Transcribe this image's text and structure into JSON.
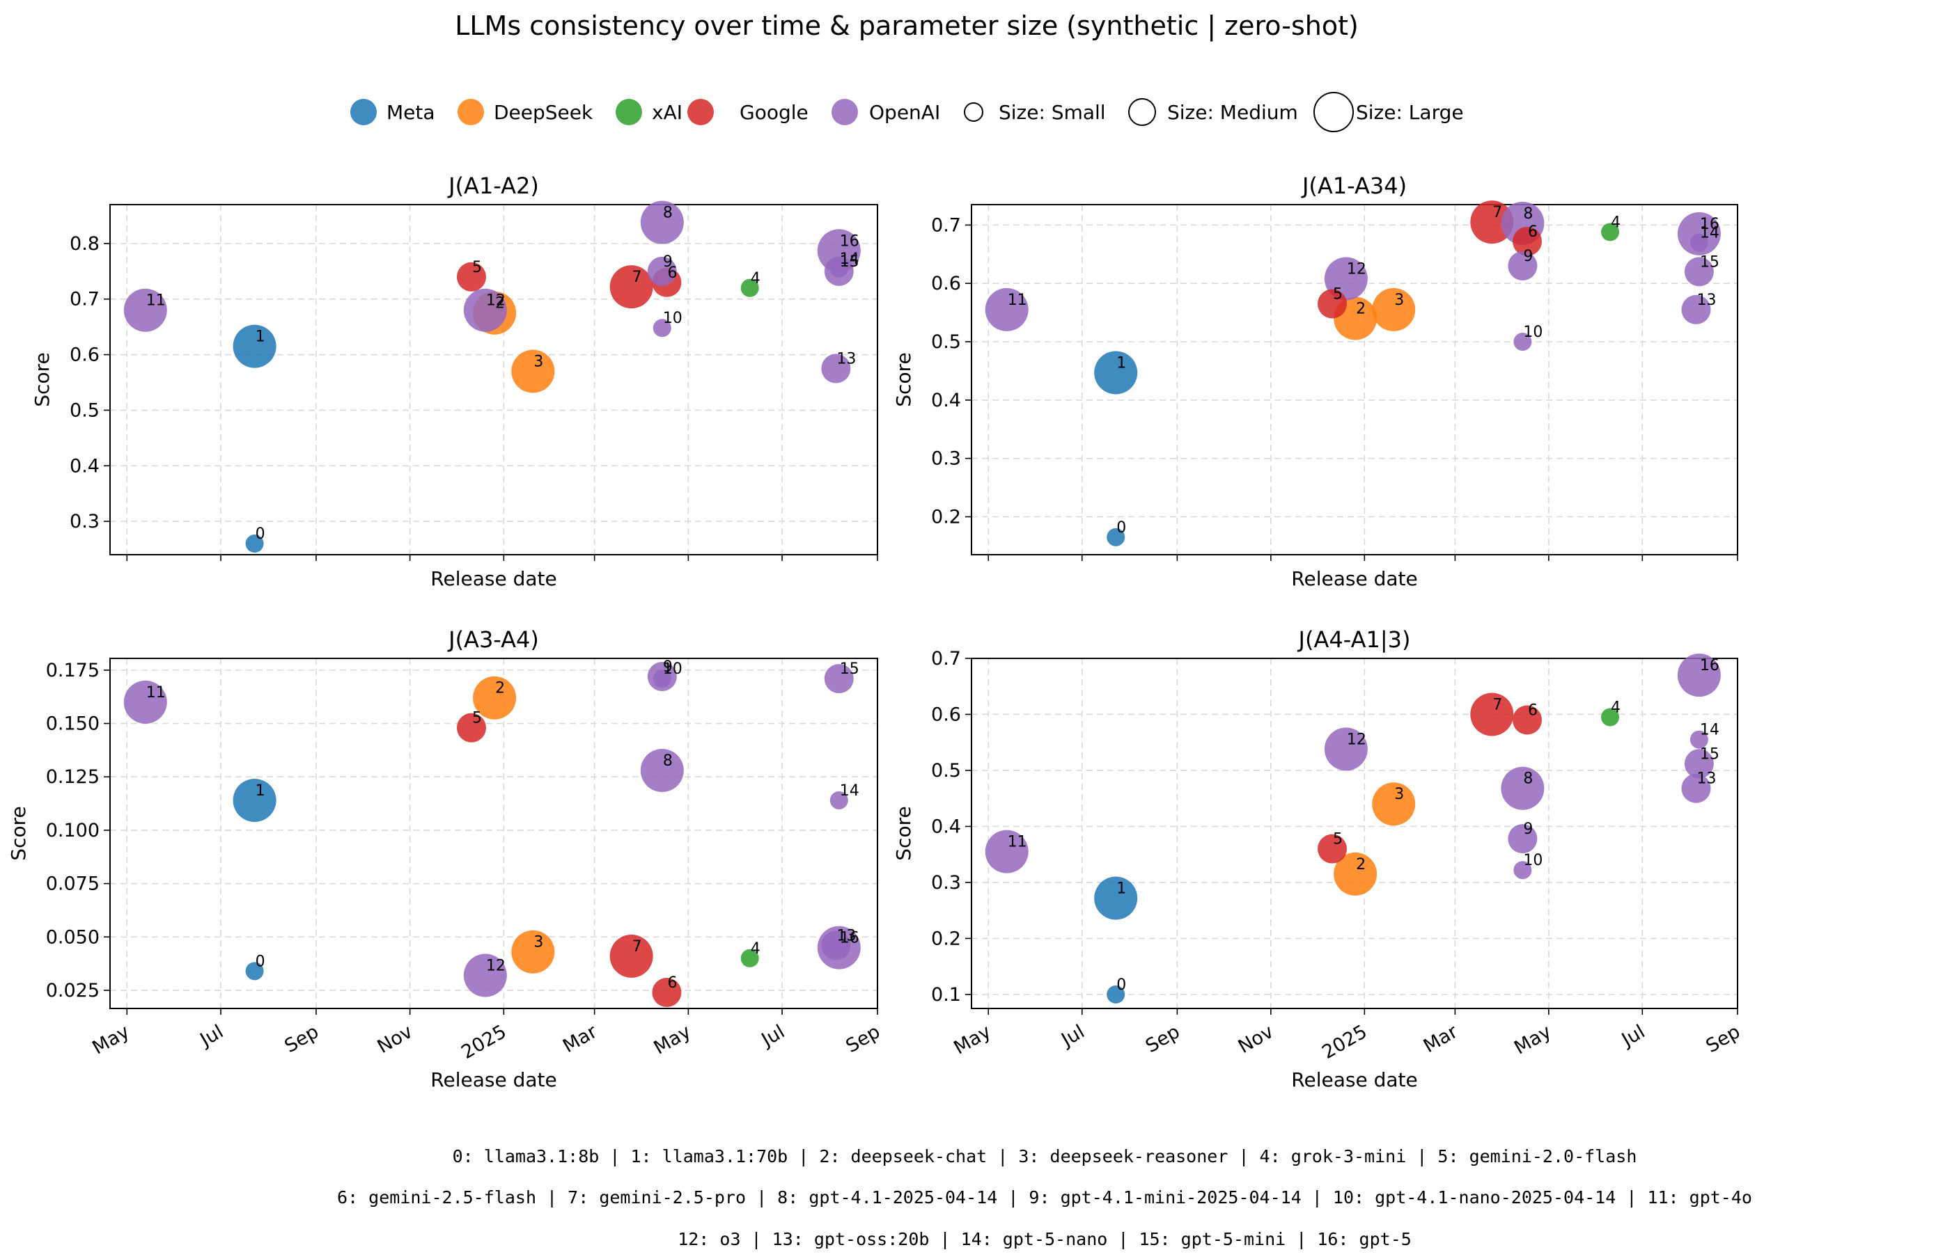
{
  "title": "LLMs consistency over time & parameter size  (synthetic | zero-shot)",
  "legend": {
    "providers": [
      {
        "name": "Meta",
        "color": "#1f77b4"
      },
      {
        "name": "DeepSeek",
        "color": "#ff7f0e"
      },
      {
        "name": "xAI",
        "color": "#2ca02c"
      },
      {
        "name": "Google",
        "color": "#d62728"
      },
      {
        "name": "OpenAI",
        "color": "#9467bd"
      }
    ],
    "sizes": [
      {
        "name": "Size: Small",
        "category": "small"
      },
      {
        "name": "Size: Medium",
        "category": "medium"
      },
      {
        "name": "Size: Large",
        "category": "large"
      }
    ]
  },
  "footer": [
    "0: llama3.1:8b |  1: llama3.1:70b |  2: deepseek-chat |  3: deepseek-reasoner |  4: grok-3-mini |  5: gemini-2.0-flash",
    "6: gemini-2.5-flash |  7: gemini-2.5-pro |  8: gpt-4.1-2025-04-14 |  9: gpt-4.1-mini-2025-04-14 | 10: gpt-4.1-nano-2025-04-14 | 11: gpt-4o",
    "12: o3 | 13: gpt-oss:20b | 14: gpt-5-nano | 15: gpt-5-mini | 16: gpt-5"
  ],
  "chart_data": [
    {
      "type": "scatter",
      "title": "J(A1-A2)",
      "xlabel": "Release date",
      "ylabel": "Score",
      "ylim": [
        0.24,
        0.87
      ],
      "yticks": [
        "0.3",
        "0.4",
        "0.5",
        "0.6",
        "0.7",
        "0.8"
      ],
      "xlim": [
        "2024-04-20",
        "2025-09-01"
      ],
      "xticks": [
        "May",
        "Jul",
        "Sep",
        "Nov",
        "2025",
        "Mar",
        "May",
        "Jul",
        "Sep"
      ],
      "show_xticklabels": false,
      "grid": true,
      "points": [
        {
          "id": "0",
          "model": "llama3.1:8b",
          "provider": "Meta",
          "size": "small",
          "date": "2024-07-23",
          "score": 0.26
        },
        {
          "id": "1",
          "model": "llama3.1:70b",
          "provider": "Meta",
          "size": "large",
          "date": "2024-07-23",
          "score": 0.615
        },
        {
          "id": "2",
          "model": "deepseek-chat",
          "provider": "DeepSeek",
          "size": "large",
          "date": "2024-12-26",
          "score": 0.675
        },
        {
          "id": "3",
          "model": "deepseek-reasoner",
          "provider": "DeepSeek",
          "size": "large",
          "date": "2025-01-20",
          "score": 0.57
        },
        {
          "id": "4",
          "model": "grok-3-mini",
          "provider": "xAI",
          "size": "small",
          "date": "2025-06-10",
          "score": 0.72
        },
        {
          "id": "5",
          "model": "gemini-2.0-flash",
          "provider": "Google",
          "size": "medium",
          "date": "2024-12-11",
          "score": 0.74
        },
        {
          "id": "6",
          "model": "gemini-2.5-flash",
          "provider": "Google",
          "size": "medium",
          "date": "2025-04-17",
          "score": 0.73
        },
        {
          "id": "7",
          "model": "gemini-2.5-pro",
          "provider": "Google",
          "size": "large",
          "date": "2025-03-25",
          "score": 0.722
        },
        {
          "id": "8",
          "model": "gpt-4.1-2025-04-14",
          "provider": "OpenAI",
          "size": "large",
          "date": "2025-04-14",
          "score": 0.838
        },
        {
          "id": "9",
          "model": "gpt-4.1-mini-2025-04-14",
          "provider": "OpenAI",
          "size": "medium",
          "date": "2025-04-14",
          "score": 0.75
        },
        {
          "id": "10",
          "model": "gpt-4.1-nano-2025-04-14",
          "provider": "OpenAI",
          "size": "small",
          "date": "2025-04-14",
          "score": 0.648
        },
        {
          "id": "11",
          "model": "gpt-4o",
          "provider": "OpenAI",
          "size": "large",
          "date": "2024-05-13",
          "score": 0.68
        },
        {
          "id": "12",
          "model": "o3",
          "provider": "OpenAI",
          "size": "large",
          "date": "2024-12-20",
          "score": 0.68
        },
        {
          "id": "13",
          "model": "gpt-oss:20b",
          "provider": "OpenAI",
          "size": "medium",
          "date": "2025-08-05",
          "score": 0.575
        },
        {
          "id": "14",
          "model": "gpt-5-nano",
          "provider": "OpenAI",
          "size": "small",
          "date": "2025-08-07",
          "score": 0.755
        },
        {
          "id": "15",
          "model": "gpt-5-mini",
          "provider": "OpenAI",
          "size": "medium",
          "date": "2025-08-07",
          "score": 0.75
        },
        {
          "id": "16",
          "model": "gpt-5",
          "provider": "OpenAI",
          "size": "large",
          "date": "2025-08-07",
          "score": 0.787
        }
      ]
    },
    {
      "type": "scatter",
      "title": "J(A1-A34)",
      "xlabel": "Release date",
      "ylabel": "Score",
      "ylim": [
        0.135,
        0.735
      ],
      "yticks": [
        "0.2",
        "0.3",
        "0.4",
        "0.5",
        "0.6",
        "0.7"
      ],
      "xlim": [
        "2024-04-20",
        "2025-09-01"
      ],
      "xticks": [
        "May",
        "Jul",
        "Sep",
        "Nov",
        "2025",
        "Mar",
        "May",
        "Jul",
        "Sep"
      ],
      "show_xticklabels": false,
      "grid": true,
      "points": [
        {
          "id": "0",
          "model": "llama3.1:8b",
          "provider": "Meta",
          "size": "small",
          "date": "2024-07-23",
          "score": 0.165
        },
        {
          "id": "1",
          "model": "llama3.1:70b",
          "provider": "Meta",
          "size": "large",
          "date": "2024-07-23",
          "score": 0.447
        },
        {
          "id": "2",
          "model": "deepseek-chat",
          "provider": "DeepSeek",
          "size": "large",
          "date": "2024-12-26",
          "score": 0.54
        },
        {
          "id": "3",
          "model": "deepseek-reasoner",
          "provider": "DeepSeek",
          "size": "large",
          "date": "2025-01-20",
          "score": 0.555
        },
        {
          "id": "4",
          "model": "grok-3-mini",
          "provider": "xAI",
          "size": "small",
          "date": "2025-06-10",
          "score": 0.688
        },
        {
          "id": "5",
          "model": "gemini-2.0-flash",
          "provider": "Google",
          "size": "medium",
          "date": "2024-12-11",
          "score": 0.565
        },
        {
          "id": "6",
          "model": "gemini-2.5-flash",
          "provider": "Google",
          "size": "medium",
          "date": "2025-04-17",
          "score": 0.672
        },
        {
          "id": "7",
          "model": "gemini-2.5-pro",
          "provider": "Google",
          "size": "large",
          "date": "2025-03-25",
          "score": 0.705
        },
        {
          "id": "8",
          "model": "gpt-4.1-2025-04-14",
          "provider": "OpenAI",
          "size": "large",
          "date": "2025-04-14",
          "score": 0.703
        },
        {
          "id": "9",
          "model": "gpt-4.1-mini-2025-04-14",
          "provider": "OpenAI",
          "size": "medium",
          "date": "2025-04-14",
          "score": 0.63
        },
        {
          "id": "10",
          "model": "gpt-4.1-nano-2025-04-14",
          "provider": "OpenAI",
          "size": "small",
          "date": "2025-04-14",
          "score": 0.5
        },
        {
          "id": "11",
          "model": "gpt-4o",
          "provider": "OpenAI",
          "size": "large",
          "date": "2024-05-13",
          "score": 0.555
        },
        {
          "id": "12",
          "model": "o3",
          "provider": "OpenAI",
          "size": "large",
          "date": "2024-12-20",
          "score": 0.608
        },
        {
          "id": "13",
          "model": "gpt-oss:20b",
          "provider": "OpenAI",
          "size": "medium",
          "date": "2025-08-05",
          "score": 0.555
        },
        {
          "id": "14",
          "model": "gpt-5-nano",
          "provider": "OpenAI",
          "size": "small",
          "date": "2025-08-07",
          "score": 0.67
        },
        {
          "id": "15",
          "model": "gpt-5-mini",
          "provider": "OpenAI",
          "size": "medium",
          "date": "2025-08-07",
          "score": 0.62
        },
        {
          "id": "16",
          "model": "gpt-5",
          "provider": "OpenAI",
          "size": "large",
          "date": "2025-08-07",
          "score": 0.685
        }
      ]
    },
    {
      "type": "scatter",
      "title": "J(A3-A4)",
      "xlabel": "Release date",
      "ylabel": "Score",
      "ylim": [
        0.0165,
        0.1805
      ],
      "yticks": [
        "0.025",
        "0.050",
        "0.075",
        "0.100",
        "0.125",
        "0.150",
        "0.175"
      ],
      "xlim": [
        "2024-04-20",
        "2025-09-01"
      ],
      "xticks": [
        "May",
        "Jul",
        "Sep",
        "Nov",
        "2025",
        "Mar",
        "May",
        "Jul",
        "Sep"
      ],
      "show_xticklabels": true,
      "grid": true,
      "points": [
        {
          "id": "0",
          "model": "llama3.1:8b",
          "provider": "Meta",
          "size": "small",
          "date": "2024-07-23",
          "score": 0.034
        },
        {
          "id": "1",
          "model": "llama3.1:70b",
          "provider": "Meta",
          "size": "large",
          "date": "2024-07-23",
          "score": 0.114
        },
        {
          "id": "2",
          "model": "deepseek-chat",
          "provider": "DeepSeek",
          "size": "large",
          "date": "2024-12-26",
          "score": 0.162
        },
        {
          "id": "3",
          "model": "deepseek-reasoner",
          "provider": "DeepSeek",
          "size": "large",
          "date": "2025-01-20",
          "score": 0.043
        },
        {
          "id": "4",
          "model": "grok-3-mini",
          "provider": "xAI",
          "size": "small",
          "date": "2025-06-10",
          "score": 0.04
        },
        {
          "id": "5",
          "model": "gemini-2.0-flash",
          "provider": "Google",
          "size": "medium",
          "date": "2024-12-11",
          "score": 0.148
        },
        {
          "id": "6",
          "model": "gemini-2.5-flash",
          "provider": "Google",
          "size": "medium",
          "date": "2025-04-17",
          "score": 0.024
        },
        {
          "id": "7",
          "model": "gemini-2.5-pro",
          "provider": "Google",
          "size": "large",
          "date": "2025-03-25",
          "score": 0.041
        },
        {
          "id": "8",
          "model": "gpt-4.1-2025-04-14",
          "provider": "OpenAI",
          "size": "large",
          "date": "2025-04-14",
          "score": 0.128
        },
        {
          "id": "9",
          "model": "gpt-4.1-mini-2025-04-14",
          "provider": "OpenAI",
          "size": "medium",
          "date": "2025-04-14",
          "score": 0.172
        },
        {
          "id": "10",
          "model": "gpt-4.1-nano-2025-04-14",
          "provider": "OpenAI",
          "size": "small",
          "date": "2025-04-14",
          "score": 0.171
        },
        {
          "id": "11",
          "model": "gpt-4o",
          "provider": "OpenAI",
          "size": "large",
          "date": "2024-05-13",
          "score": 0.16
        },
        {
          "id": "12",
          "model": "o3",
          "provider": "OpenAI",
          "size": "large",
          "date": "2024-12-20",
          "score": 0.032
        },
        {
          "id": "13",
          "model": "gpt-oss:20b",
          "provider": "OpenAI",
          "size": "medium",
          "date": "2025-08-05",
          "score": 0.046
        },
        {
          "id": "14",
          "model": "gpt-5-nano",
          "provider": "OpenAI",
          "size": "small",
          "date": "2025-08-07",
          "score": 0.114
        },
        {
          "id": "15",
          "model": "gpt-5-mini",
          "provider": "OpenAI",
          "size": "medium",
          "date": "2025-08-07",
          "score": 0.171
        },
        {
          "id": "16",
          "model": "gpt-5",
          "provider": "OpenAI",
          "size": "large",
          "date": "2025-08-07",
          "score": 0.045
        }
      ]
    },
    {
      "type": "scatter",
      "title": "J(A4-A1|3)",
      "xlabel": "Release date",
      "ylabel": "Score",
      "ylim": [
        0.075,
        0.7
      ],
      "yticks": [
        "0.1",
        "0.2",
        "0.3",
        "0.4",
        "0.5",
        "0.6",
        "0.7"
      ],
      "xlim": [
        "2024-04-20",
        "2025-09-01"
      ],
      "xticks": [
        "May",
        "Jul",
        "Sep",
        "Nov",
        "2025",
        "Mar",
        "May",
        "Jul",
        "Sep"
      ],
      "show_xticklabels": true,
      "grid": true,
      "points": [
        {
          "id": "0",
          "model": "llama3.1:8b",
          "provider": "Meta",
          "size": "small",
          "date": "2024-07-23",
          "score": 0.1
        },
        {
          "id": "1",
          "model": "llama3.1:70b",
          "provider": "Meta",
          "size": "large",
          "date": "2024-07-23",
          "score": 0.272
        },
        {
          "id": "2",
          "model": "deepseek-chat",
          "provider": "DeepSeek",
          "size": "large",
          "date": "2024-12-26",
          "score": 0.315
        },
        {
          "id": "3",
          "model": "deepseek-reasoner",
          "provider": "DeepSeek",
          "size": "large",
          "date": "2025-01-20",
          "score": 0.44
        },
        {
          "id": "4",
          "model": "grok-3-mini",
          "provider": "xAI",
          "size": "small",
          "date": "2025-06-10",
          "score": 0.595
        },
        {
          "id": "5",
          "model": "gemini-2.0-flash",
          "provider": "Google",
          "size": "medium",
          "date": "2024-12-11",
          "score": 0.36
        },
        {
          "id": "6",
          "model": "gemini-2.5-flash",
          "provider": "Google",
          "size": "medium",
          "date": "2025-04-17",
          "score": 0.59
        },
        {
          "id": "7",
          "model": "gemini-2.5-pro",
          "provider": "Google",
          "size": "large",
          "date": "2025-03-25",
          "score": 0.6
        },
        {
          "id": "8",
          "model": "gpt-4.1-2025-04-14",
          "provider": "OpenAI",
          "size": "large",
          "date": "2025-04-14",
          "score": 0.468
        },
        {
          "id": "9",
          "model": "gpt-4.1-mini-2025-04-14",
          "provider": "OpenAI",
          "size": "medium",
          "date": "2025-04-14",
          "score": 0.378
        },
        {
          "id": "10",
          "model": "gpt-4.1-nano-2025-04-14",
          "provider": "OpenAI",
          "size": "small",
          "date": "2025-04-14",
          "score": 0.322
        },
        {
          "id": "11",
          "model": "gpt-4o",
          "provider": "OpenAI",
          "size": "large",
          "date": "2024-05-13",
          "score": 0.355
        },
        {
          "id": "12",
          "model": "o3",
          "provider": "OpenAI",
          "size": "large",
          "date": "2024-12-20",
          "score": 0.538
        },
        {
          "id": "13",
          "model": "gpt-oss:20b",
          "provider": "OpenAI",
          "size": "medium",
          "date": "2025-08-05",
          "score": 0.468
        },
        {
          "id": "14",
          "model": "gpt-5-nano",
          "provider": "OpenAI",
          "size": "small",
          "date": "2025-08-07",
          "score": 0.555
        },
        {
          "id": "15",
          "model": "gpt-5-mini",
          "provider": "OpenAI",
          "size": "medium",
          "date": "2025-08-07",
          "score": 0.512
        },
        {
          "id": "16",
          "model": "gpt-5",
          "provider": "OpenAI",
          "size": "large",
          "date": "2025-08-07",
          "score": 0.67
        }
      ]
    }
  ]
}
